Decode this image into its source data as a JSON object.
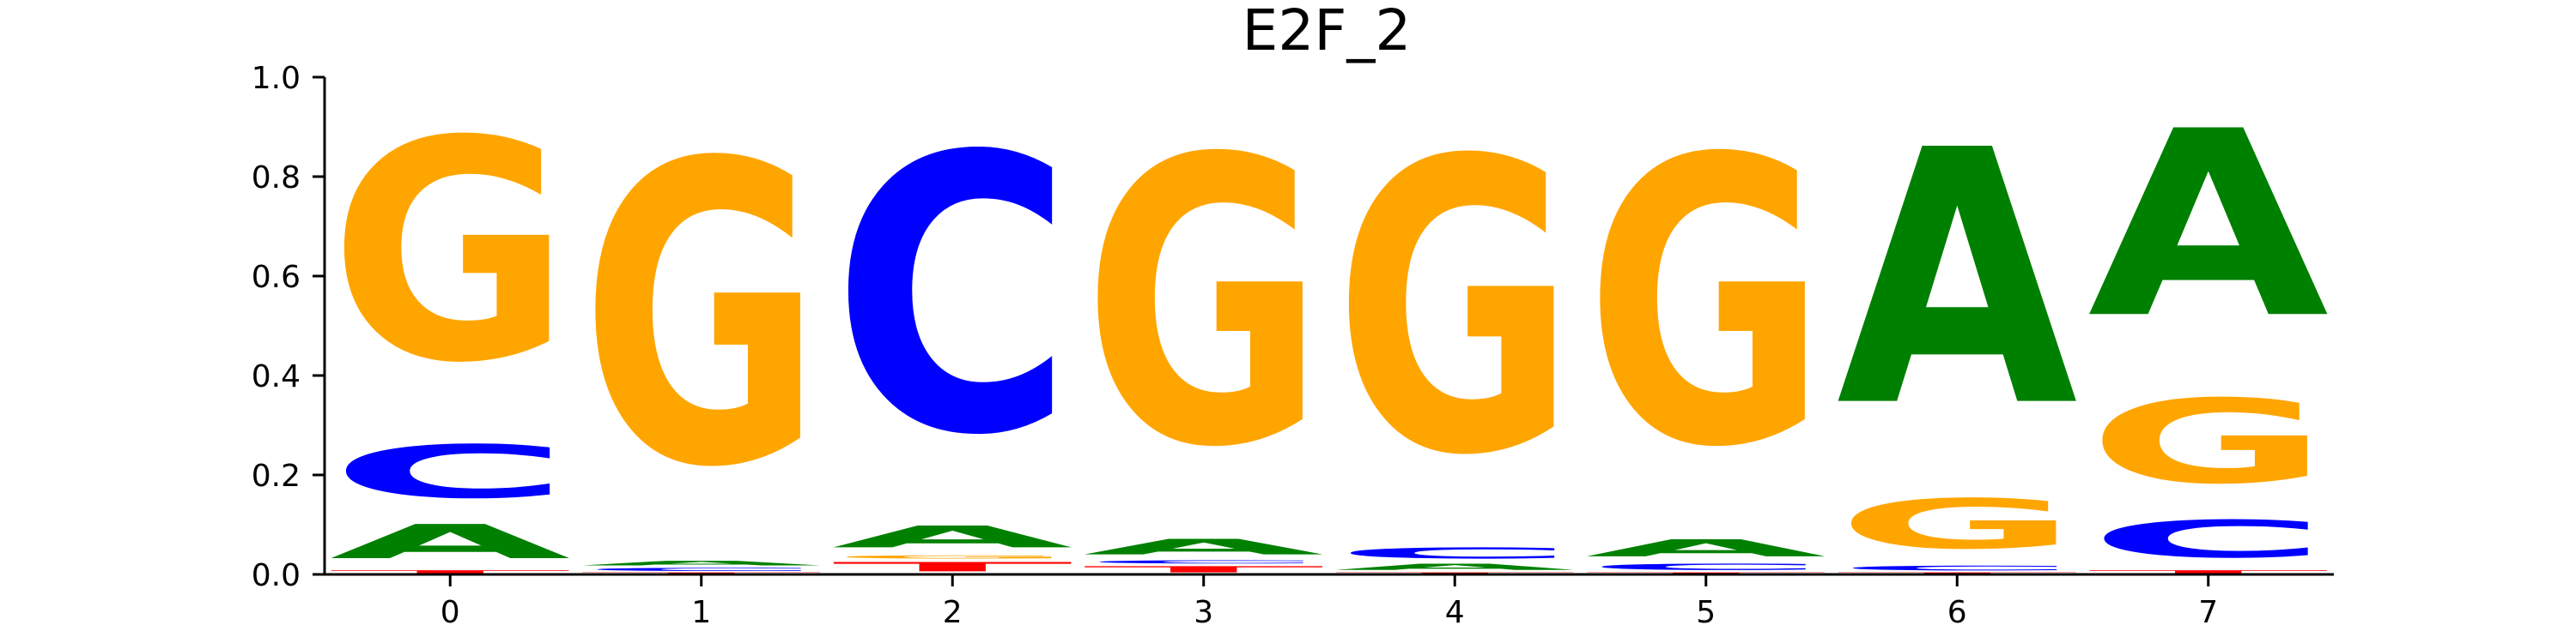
{
  "chart_data": {
    "type": "sequence-logo",
    "title": "E2F_2",
    "x_ticks": [
      "0",
      "1",
      "2",
      "3",
      "4",
      "5",
      "6",
      "7"
    ],
    "y_ticks": [
      "0.0",
      "0.2",
      "0.4",
      "0.6",
      "0.8",
      "1.0"
    ],
    "ylim": [
      0,
      1
    ],
    "grid": false,
    "colors": {
      "A": "#008000",
      "C": "#0000ff",
      "G": "#ffa500",
      "T": "#ff0000"
    },
    "positions": [
      {
        "x": 0,
        "letters": [
          {
            "base": "T",
            "value": 0.01
          },
          {
            "base": "A",
            "value": 0.11
          },
          {
            "base": "C",
            "value": 0.17
          },
          {
            "base": "G",
            "value": 0.71
          }
        ]
      },
      {
        "x": 1,
        "letters": [
          {
            "base": "T",
            "value": 0.005
          },
          {
            "base": "C",
            "value": 0.01
          },
          {
            "base": "A",
            "value": 0.015
          },
          {
            "base": "G",
            "value": 0.97
          }
        ]
      },
      {
        "x": 2,
        "letters": [
          {
            "base": "T",
            "value": 0.03
          },
          {
            "base": "G",
            "value": 0.01
          },
          {
            "base": "A",
            "value": 0.07
          },
          {
            "base": "C",
            "value": 0.89
          }
        ]
      },
      {
        "x": 3,
        "letters": [
          {
            "base": "T",
            "value": 0.02
          },
          {
            "base": "C",
            "value": 0.01
          },
          {
            "base": "A",
            "value": 0.05
          },
          {
            "base": "G",
            "value": 0.92
          }
        ]
      },
      {
        "x": 4,
        "letters": [
          {
            "base": "T",
            "value": 0.005
          },
          {
            "base": "A",
            "value": 0.02
          },
          {
            "base": "C",
            "value": 0.035
          },
          {
            "base": "G",
            "value": 0.94
          }
        ]
      },
      {
        "x": 5,
        "letters": [
          {
            "base": "T",
            "value": 0.005
          },
          {
            "base": "C",
            "value": 0.02
          },
          {
            "base": "A",
            "value": 0.055
          },
          {
            "base": "G",
            "value": 0.92
          }
        ]
      },
      {
        "x": 6,
        "letters": [
          {
            "base": "T",
            "value": 0.005
          },
          {
            "base": "C",
            "value": 0.015
          },
          {
            "base": "G",
            "value": 0.16
          },
          {
            "base": "A",
            "value": 0.82
          }
        ]
      },
      {
        "x": 7,
        "letters": [
          {
            "base": "T",
            "value": 0.01
          },
          {
            "base": "C",
            "value": 0.12
          },
          {
            "base": "G",
            "value": 0.27
          },
          {
            "base": "A",
            "value": 0.6
          }
        ]
      }
    ]
  }
}
